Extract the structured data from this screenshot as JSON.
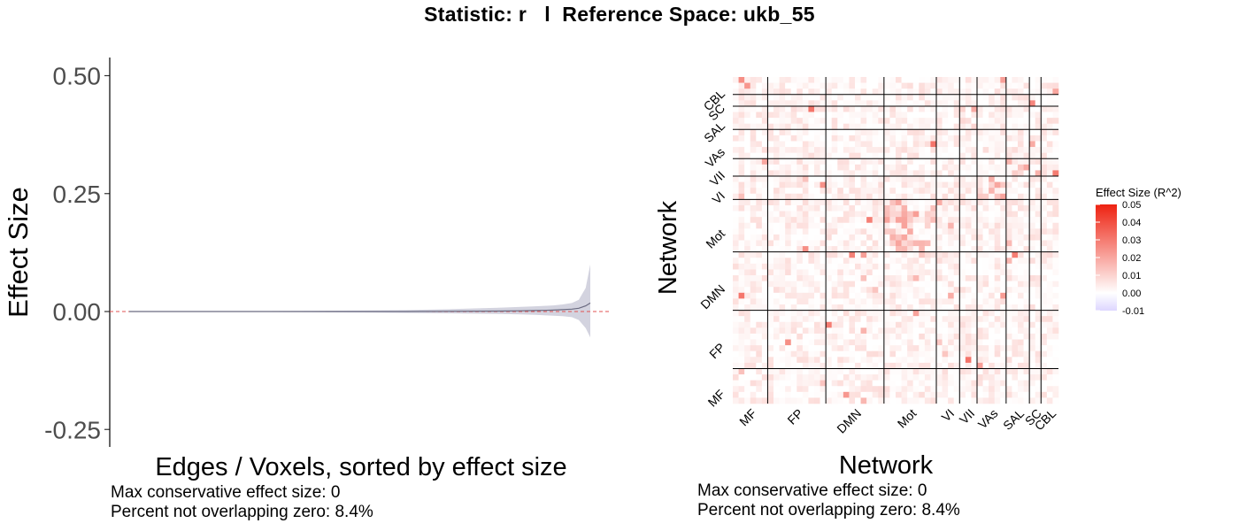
{
  "title": "Statistic: r   l  Reference Space: ukb_55",
  "chart_data": [
    {
      "type": "line",
      "ylabel": "Effect Size",
      "xlabel": "Edges / Voxels, sorted by effect size",
      "yticks": [
        "0.50",
        "0.25",
        "0.00",
        "-0.25"
      ],
      "ylim": [
        -0.27,
        0.52
      ],
      "reference_line": 0,
      "curve": {
        "x": [
          0,
          0.1,
          0.2,
          0.3,
          0.4,
          0.5,
          0.6,
          0.7,
          0.8,
          0.85,
          0.88,
          0.9,
          0.92,
          0.94,
          0.96,
          0.975,
          0.99,
          1.0
        ],
        "estimate": [
          0,
          0,
          0,
          0,
          0,
          0,
          0,
          0.0005,
          0.001,
          0.0015,
          0.002,
          0.0025,
          0.003,
          0.004,
          0.005,
          0.007,
          0.012,
          0.018
        ],
        "upper": [
          0,
          0.0003,
          0.0006,
          0.001,
          0.0015,
          0.002,
          0.003,
          0.005,
          0.008,
          0.01,
          0.011,
          0.012,
          0.013,
          0.015,
          0.018,
          0.025,
          0.05,
          0.1
        ],
        "lower": [
          0,
          -0.0003,
          -0.0006,
          -0.001,
          -0.0015,
          -0.002,
          -0.003,
          -0.004,
          -0.005,
          -0.006,
          -0.007,
          -0.008,
          -0.009,
          -0.01,
          -0.012,
          -0.018,
          -0.035,
          -0.055
        ]
      },
      "annotations": [
        "Max conservative effect size: 0",
        "Percent not overlapping zero: 8.4%"
      ]
    },
    {
      "type": "heatmap",
      "xlabel": "Network",
      "ylabel": "Network",
      "networks": [
        "MF",
        "FP",
        "DMN",
        "Mot",
        "VI",
        "VII",
        "VAs",
        "SAL",
        "SC",
        "CBL"
      ],
      "network_sizes": [
        6,
        10,
        10,
        9,
        4,
        3,
        5,
        4,
        2,
        3
      ],
      "legend": {
        "title": "Effect Size (R^2)",
        "ticks": [
          "0.05",
          "0.04",
          "0.03",
          "0.02",
          "0.01",
          "0.00",
          "-0.01"
        ],
        "range": [
          -0.01,
          0.05
        ],
        "colors": {
          "low": "#ddd6ff",
          "mid": "#ffffff",
          "high": "#ee2211"
        }
      },
      "annotations": [
        "Max conservative effect size: 0",
        "Percent not overlapping zero: 8.4%"
      ]
    }
  ]
}
